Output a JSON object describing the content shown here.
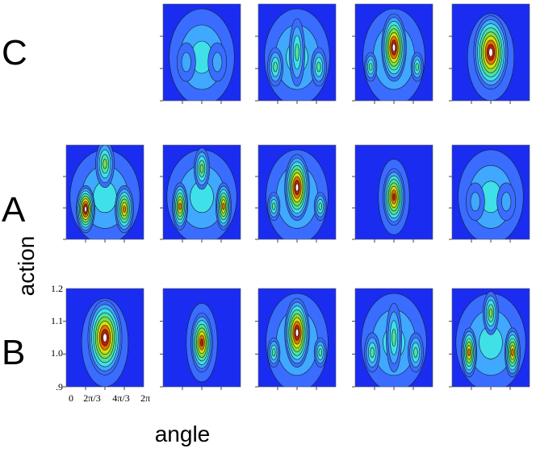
{
  "figure": {
    "row_labels": [
      "C",
      "A",
      "B"
    ],
    "y_axis_label": "action",
    "x_axis_label": "angle",
    "y_ticks": [
      "1.2",
      "1.1",
      "1.0",
      ".9"
    ],
    "x_ticks": [
      "0",
      "2π/3",
      "4π/3",
      "2π"
    ]
  }
}
